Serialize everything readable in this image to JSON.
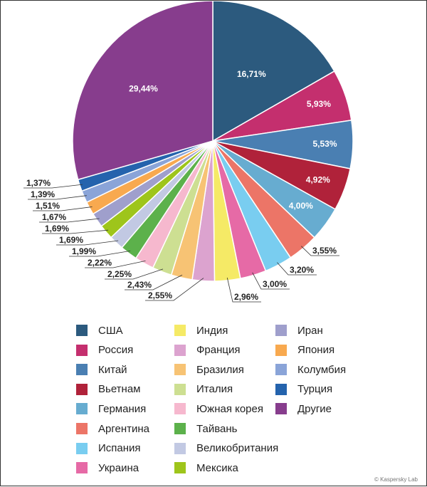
{
  "chart_data": {
    "type": "pie",
    "start_angle_deg": 0,
    "direction": "clockwise",
    "legend_position": "bottom",
    "slices": [
      {
        "name": "США",
        "value": 16.71,
        "label": "16,71%",
        "color": "#2c5a7e"
      },
      {
        "name": "Россия",
        "value": 5.93,
        "label": "5,93%",
        "color": "#c42f6e"
      },
      {
        "name": "Китай",
        "value": 5.53,
        "label": "5,53%",
        "color": "#4a7fb2"
      },
      {
        "name": "Вьетнам",
        "value": 4.92,
        "label": "4,92%",
        "color": "#b0223a"
      },
      {
        "name": "Германия",
        "value": 4.0,
        "label": "4,00%",
        "color": "#67acd0"
      },
      {
        "name": "Аргентина",
        "value": 3.55,
        "label": "3,55%",
        "color": "#ec7567"
      },
      {
        "name": "Испания",
        "value": 3.2,
        "label": "3,20%",
        "color": "#79cdf0"
      },
      {
        "name": "Украина",
        "value": 3.0,
        "label": "3,00%",
        "color": "#e66aa6"
      },
      {
        "name": "Индия",
        "value": 2.96,
        "label": "2,96%",
        "color": "#f5ea66"
      },
      {
        "name": "Франция",
        "value": 2.55,
        "label": "2,55%",
        "color": "#dca3cf"
      },
      {
        "name": "Бразилия",
        "value": 2.43,
        "label": "2,43%",
        "color": "#f7c374"
      },
      {
        "name": "Италия",
        "value": 2.25,
        "label": "2,25%",
        "color": "#cddf92"
      },
      {
        "name": "Южная корея",
        "value": 2.22,
        "label": "2,22%",
        "color": "#f6b8ce"
      },
      {
        "name": "Тайвань",
        "value": 1.99,
        "label": "1,99%",
        "color": "#5cb14b"
      },
      {
        "name": "Великобритания",
        "value": 1.69,
        "label": "1,69%",
        "color": "#c2c9e3"
      },
      {
        "name": "Мексика",
        "value": 1.69,
        "label": "1,69%",
        "color": "#9ec51b"
      },
      {
        "name": "Иран",
        "value": 1.67,
        "label": "1,67%",
        "color": "#9f9fcc"
      },
      {
        "name": "Япония",
        "value": 1.51,
        "label": "1,51%",
        "color": "#f8a94f"
      },
      {
        "name": "Колумбия",
        "value": 1.39,
        "label": "1,39%",
        "color": "#8aa4d8"
      },
      {
        "name": "Турция",
        "value": 1.37,
        "label": "1,37%",
        "color": "#2463ad"
      },
      {
        "name": "Другие",
        "value": 29.44,
        "label": "29,44%",
        "color": "#873d8d"
      }
    ]
  },
  "legend": {
    "columns": [
      [
        "США",
        "Россия",
        "Китай",
        "Вьетнам",
        "Германия",
        "Аргентина",
        "Испания",
        "Украина"
      ],
      [
        "Индия",
        "Франция",
        "Бразилия",
        "Италия",
        "Южная корея",
        "Тайвань",
        "Великобритания",
        "Мексика"
      ],
      [
        "Иран",
        "Япония",
        "Колумбия",
        "Турция",
        "Другие"
      ]
    ]
  },
  "copyright": "© Kaspersky Lab"
}
